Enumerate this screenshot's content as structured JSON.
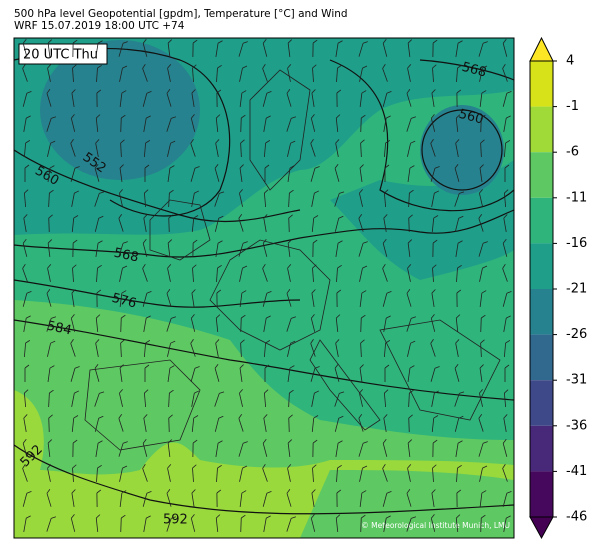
{
  "header": {
    "title": "500 hPa level Geopotential [gpdm], Temperature [°C] and Wind",
    "subtitle": "WRF 15.07.2019 18:00 UTC +74"
  },
  "map": {
    "time_label": "20 UTC Thu",
    "contour_labels": [
      568,
      560,
      552,
      560,
      568,
      576,
      584,
      592,
      592
    ],
    "credit": "© Meteorological Institute Munich, LMU"
  },
  "colorbar": {
    "ticks": [
      4,
      -1,
      -6,
      -11,
      -16,
      -21,
      -26,
      -31,
      -36,
      -41,
      -46
    ],
    "colors": [
      "#d7e219",
      "#a0da39",
      "#5ec962",
      "#2fb47c",
      "#1f9e89",
      "#26828e",
      "#31688e",
      "#3e4989",
      "#482878",
      "#46085c"
    ],
    "extend_colors": [
      "#fde725",
      "#440154"
    ]
  }
}
